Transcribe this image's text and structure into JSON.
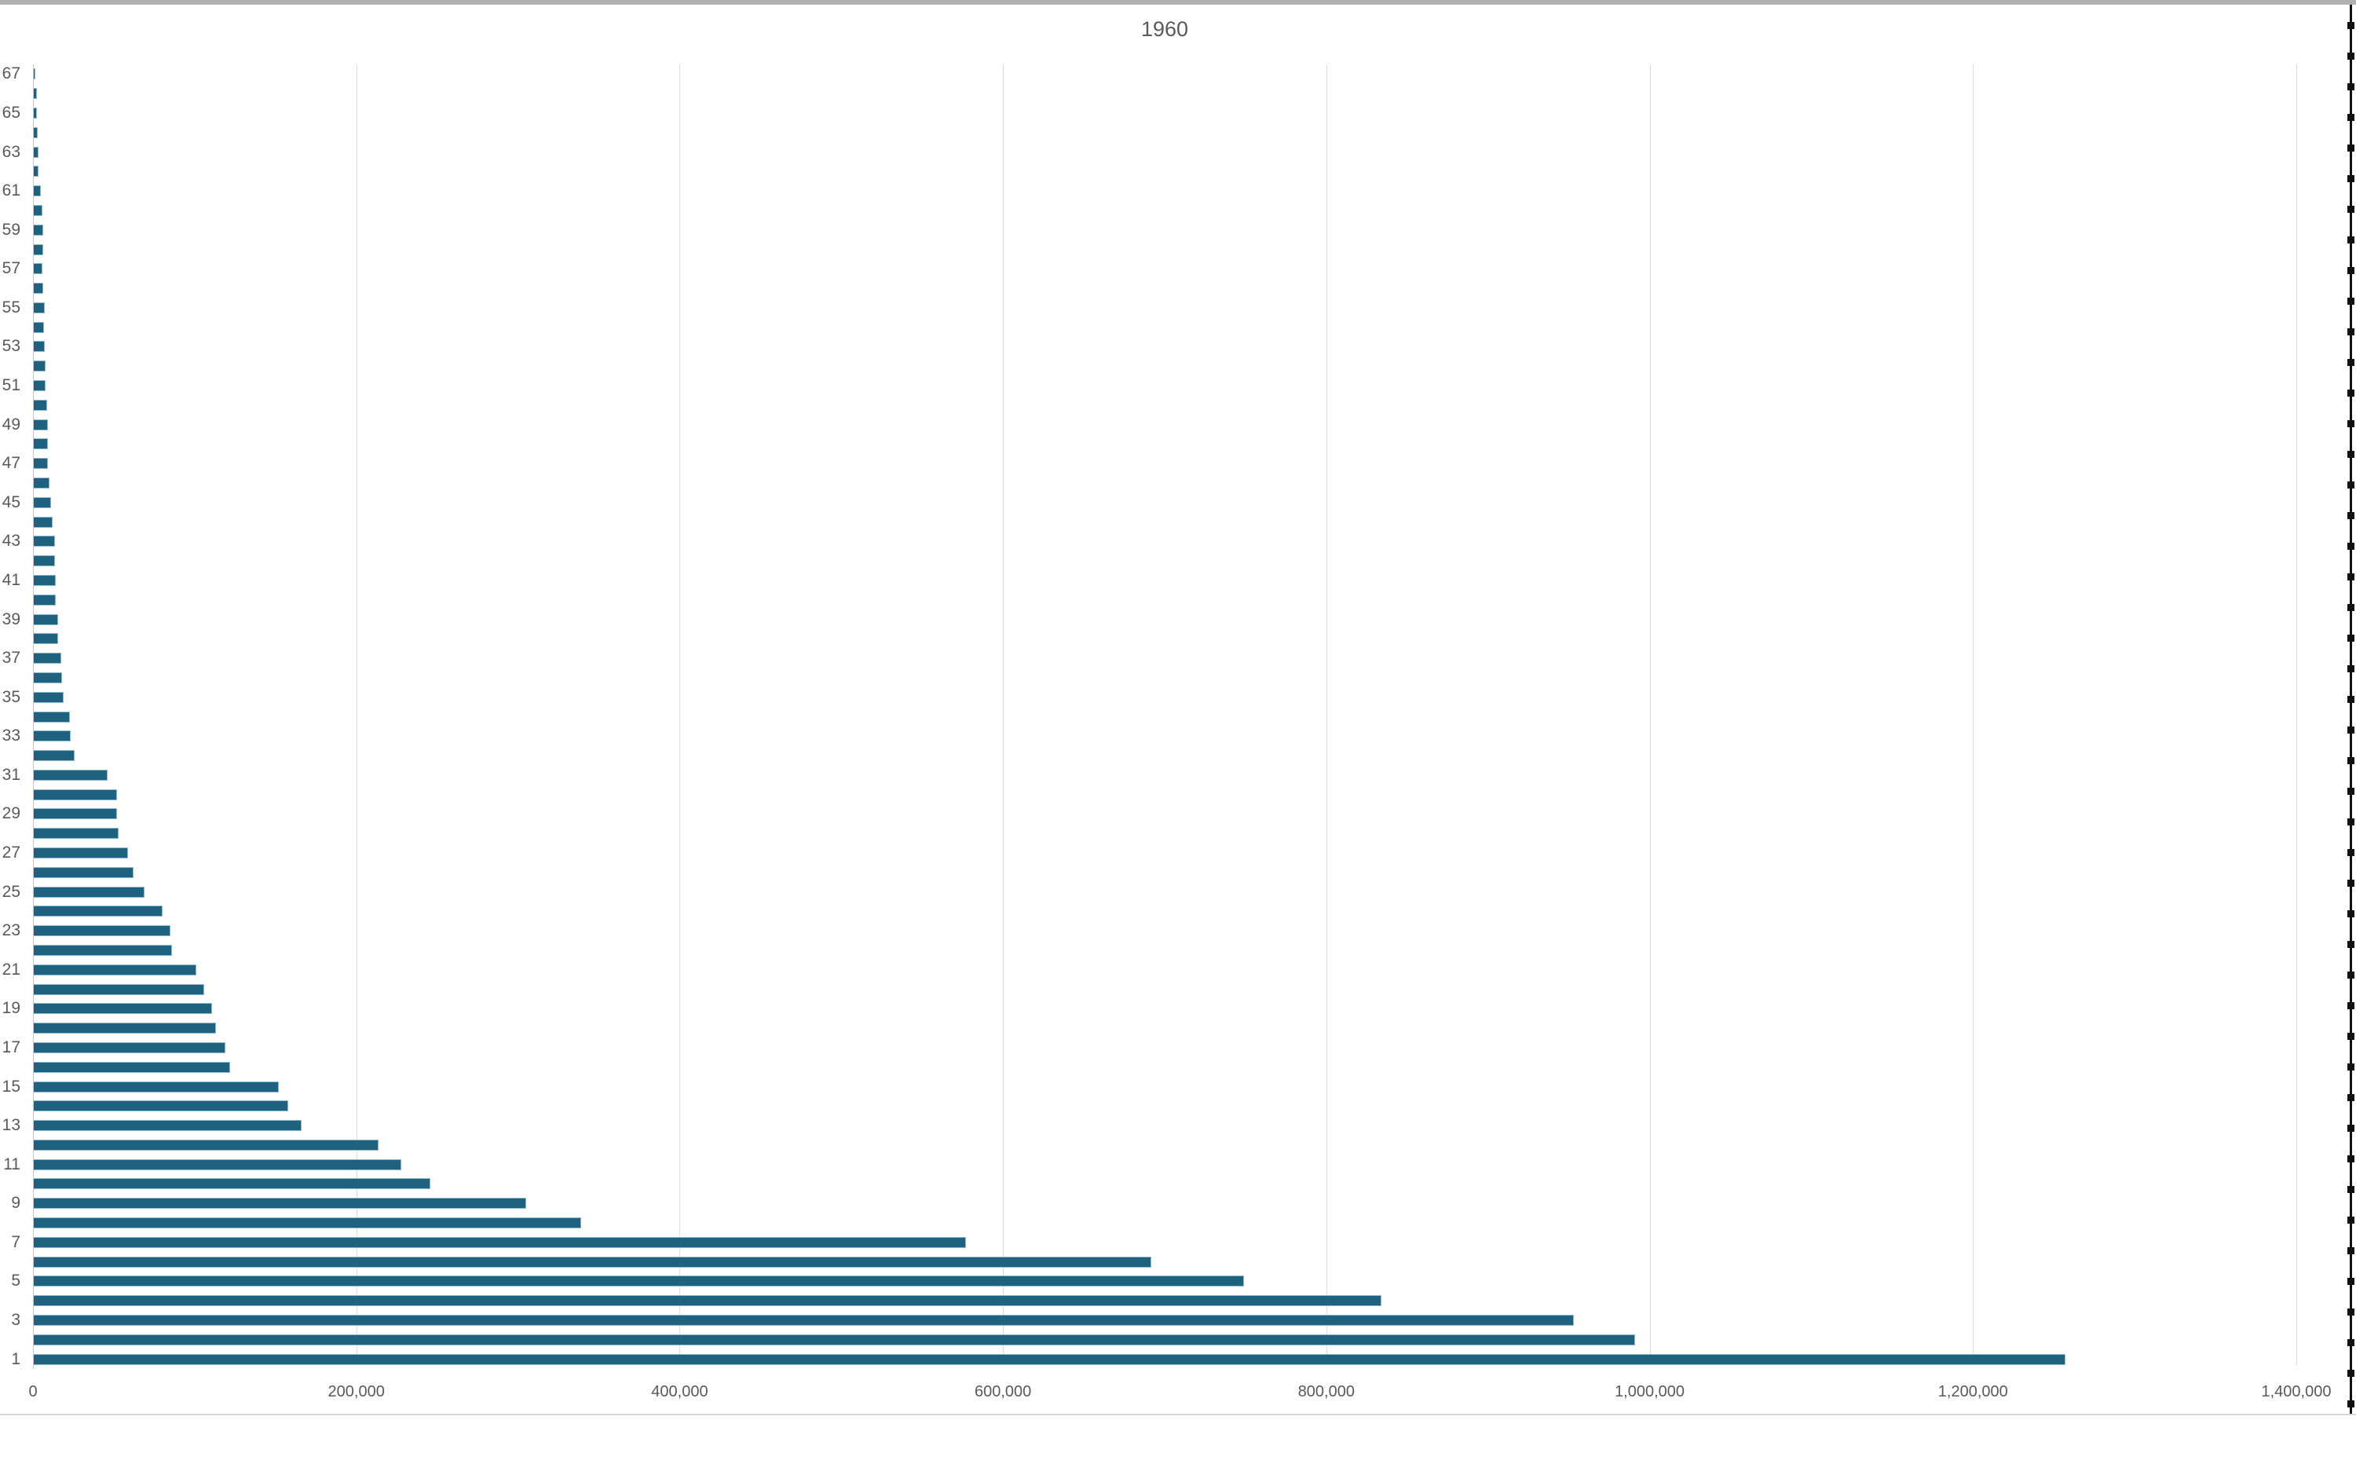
{
  "chart_data": {
    "type": "bar",
    "orientation": "horizontal",
    "title": "1960",
    "xlabel": "",
    "ylabel": "",
    "xlim": [
      0,
      1400000
    ],
    "grid": "vertical-gridlines-on",
    "legend": "none",
    "bar_color": "#1f627f",
    "bar_border_color": "#8fb8cb",
    "categories": [
      1,
      2,
      3,
      4,
      5,
      6,
      7,
      8,
      9,
      10,
      11,
      12,
      13,
      14,
      15,
      16,
      17,
      18,
      19,
      20,
      21,
      22,
      23,
      24,
      25,
      26,
      27,
      28,
      29,
      30,
      31,
      32,
      33,
      34,
      35,
      36,
      37,
      38,
      39,
      40,
      41,
      42,
      43,
      44,
      45,
      46,
      47,
      48,
      49,
      50,
      51,
      52,
      53,
      54,
      55,
      56,
      57,
      58,
      59,
      60,
      61,
      62,
      63,
      64,
      65,
      66,
      67
    ],
    "values": [
      1256000,
      990000,
      952000,
      833000,
      748000,
      691000,
      576000,
      338000,
      304000,
      245000,
      227000,
      213000,
      165000,
      157000,
      151000,
      121000,
      118000,
      112000,
      110000,
      105000,
      100000,
      85000,
      84000,
      79000,
      68000,
      61000,
      58000,
      52000,
      51000,
      51000,
      45000,
      25000,
      22500,
      22000,
      18000,
      17000,
      16500,
      14500,
      14700,
      13200,
      13000,
      12600,
      12500,
      11300,
      10000,
      9000,
      8500,
      8100,
      8100,
      7600,
      7000,
      7000,
      6100,
      5900,
      6100,
      5500,
      5100,
      5400,
      5200,
      4700,
      3900,
      2400,
      2400,
      1800,
      1600,
      1400,
      400
    ],
    "y_tick_labels_shown": [
      "1",
      "3",
      "5",
      "7",
      "9",
      "11",
      "13",
      "15",
      "17",
      "19",
      "21",
      "23",
      "25",
      "27",
      "29",
      "31",
      "33",
      "35",
      "37",
      "39",
      "41",
      "43",
      "45",
      "47",
      "49",
      "51",
      "53",
      "55",
      "57",
      "59",
      "61",
      "63",
      "65",
      "67"
    ],
    "x_ticks": [
      {
        "value": 0,
        "label": "0"
      },
      {
        "value": 200000,
        "label": "200,000"
      },
      {
        "value": 400000,
        "label": "400,000"
      },
      {
        "value": 600000,
        "label": "600,000"
      },
      {
        "value": 800000,
        "label": "800,000"
      },
      {
        "value": 1000000,
        "label": "1,000,000"
      },
      {
        "value": 1200000,
        "label": "1,200,000"
      },
      {
        "value": 1400000,
        "label": "1,400,000"
      }
    ]
  }
}
